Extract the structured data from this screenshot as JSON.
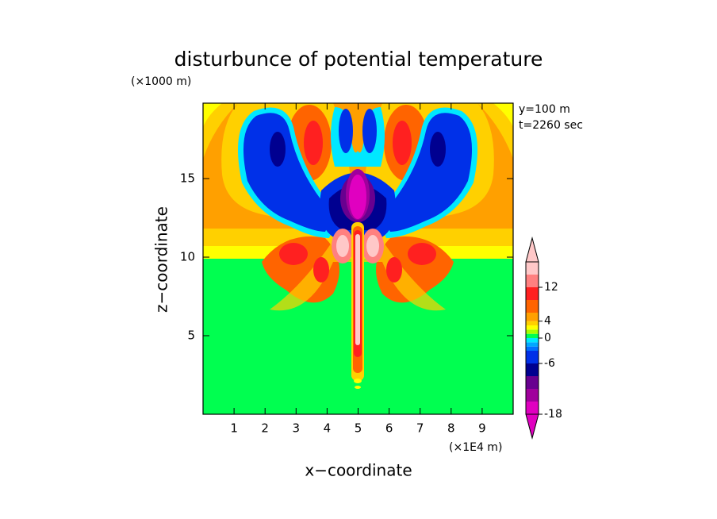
{
  "chart_data": {
    "type": "contour",
    "title": "disturbunce of potential temperature",
    "x_label": "x−coordinate",
    "y_label": "z−coordinate",
    "x_unit_label": "(×1E4 m)",
    "y_unit_label": "(×1000 m)",
    "annotations": [
      "y=100 m",
      "t=2260 sec"
    ],
    "xlim": [
      0,
      10
    ],
    "xticks": [
      1,
      2,
      3,
      4,
      5,
      6,
      7,
      8,
      9
    ],
    "ylim": [
      0,
      19.8
    ],
    "yticks": [
      5,
      10,
      15
    ],
    "colorbar": {
      "levels": [
        -18,
        -15,
        -12,
        -9,
        -6,
        -3,
        -2,
        -1,
        0,
        1,
        2,
        3,
        4,
        6,
        9,
        12,
        15,
        18
      ],
      "colors": [
        "#e000c0",
        "#a0009c",
        "#680090",
        "#000090",
        "#0030e8",
        "#0070ff",
        "#00a8ff",
        "#00e8ff",
        "#00ff50",
        "#a8ff00",
        "#ffff00",
        "#ffd000",
        "#ffa000",
        "#ff6400",
        "#ff2020",
        "#ff8080",
        "#ffc8c8"
      ],
      "ticks": [
        12,
        4,
        0,
        -6,
        -18
      ]
    }
  }
}
